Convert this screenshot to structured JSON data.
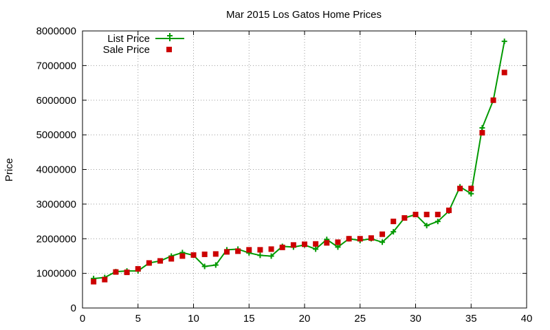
{
  "chart_data": {
    "type": "line",
    "title": "Mar 2015 Los Gatos Home Prices",
    "xlabel": "",
    "ylabel": "Price",
    "xlim": [
      0,
      40
    ],
    "ylim": [
      0,
      8000000
    ],
    "x_ticks": [
      0,
      5,
      10,
      15,
      20,
      25,
      30,
      35,
      40
    ],
    "y_ticks": [
      0,
      1000000,
      2000000,
      3000000,
      4000000,
      5000000,
      6000000,
      7000000,
      8000000
    ],
    "grid": true,
    "legend_position": "top-left",
    "x": [
      1,
      2,
      3,
      4,
      5,
      6,
      7,
      8,
      9,
      10,
      11,
      12,
      13,
      14,
      15,
      16,
      17,
      18,
      19,
      20,
      21,
      22,
      23,
      24,
      25,
      26,
      27,
      28,
      29,
      30,
      31,
      32,
      33,
      34,
      35,
      36,
      37,
      38
    ],
    "series": [
      {
        "name": "List Price",
        "style": "line-plus",
        "color": "#009900",
        "values": [
          850000,
          880000,
          1050000,
          1070000,
          1070000,
          1300000,
          1360000,
          1500000,
          1600000,
          1520000,
          1200000,
          1240000,
          1680000,
          1700000,
          1590000,
          1520000,
          1500000,
          1780000,
          1760000,
          1820000,
          1700000,
          1980000,
          1760000,
          2000000,
          1950000,
          2000000,
          1900000,
          2200000,
          2600000,
          2700000,
          2380000,
          2500000,
          2800000,
          3500000,
          3300000,
          5200000,
          6000000,
          7700000
        ]
      },
      {
        "name": "Sale Price",
        "style": "points-square",
        "color": "#cc0000",
        "values": [
          760000,
          820000,
          1040000,
          1030000,
          1130000,
          1300000,
          1360000,
          1420000,
          1500000,
          1530000,
          1550000,
          1560000,
          1620000,
          1640000,
          1680000,
          1680000,
          1700000,
          1750000,
          1820000,
          1840000,
          1850000,
          1880000,
          1900000,
          2000000,
          2000000,
          2020000,
          2130000,
          2500000,
          2600000,
          2700000,
          2700000,
          2700000,
          2820000,
          3450000,
          3450000,
          5060000,
          6000000,
          6800000
        ]
      }
    ]
  }
}
